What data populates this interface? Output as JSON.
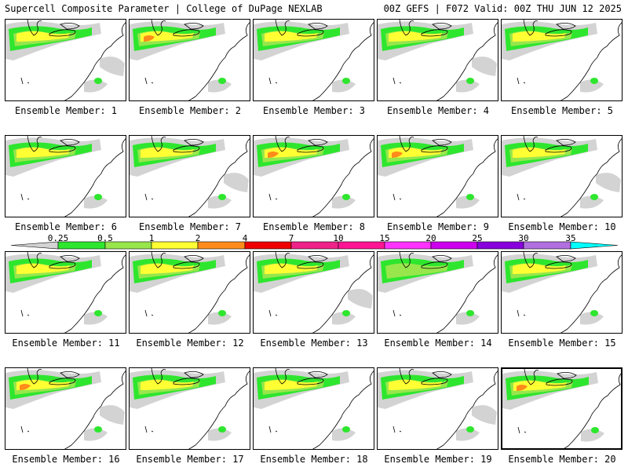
{
  "header": {
    "title_left": "Supercell Composite Parameter | College of DuPage NEXLAB",
    "title_right": "00Z GEFS | F072 Valid: 00Z THU JUN 12 2025"
  },
  "member_label_prefix": "Ensemble Member: ",
  "members": [
    {
      "label": "Ensemble Member: 1",
      "max_value": 4
    },
    {
      "label": "Ensemble Member: 2",
      "max_value": 7
    },
    {
      "label": "Ensemble Member: 3",
      "max_value": 4
    },
    {
      "label": "Ensemble Member: 4",
      "max_value": 4
    },
    {
      "label": "Ensemble Member: 5",
      "max_value": 4
    },
    {
      "label": "Ensemble Member: 6",
      "max_value": 4
    },
    {
      "label": "Ensemble Member: 7",
      "max_value": 4
    },
    {
      "label": "Ensemble Member: 8",
      "max_value": 7
    },
    {
      "label": "Ensemble Member: 9",
      "max_value": 7
    },
    {
      "label": "Ensemble Member: 10",
      "max_value": 4
    },
    {
      "label": "Ensemble Member: 11",
      "max_value": 4
    },
    {
      "label": "Ensemble Member: 12",
      "max_value": 4
    },
    {
      "label": "Ensemble Member: 13",
      "max_value": 4
    },
    {
      "label": "Ensemble Member: 14",
      "max_value": 2
    },
    {
      "label": "Ensemble Member: 15",
      "max_value": 4
    },
    {
      "label": "Ensemble Member: 16",
      "max_value": 7
    },
    {
      "label": "Ensemble Member: 17",
      "max_value": 4
    },
    {
      "label": "Ensemble Member: 18",
      "max_value": 4
    },
    {
      "label": "Ensemble Member: 19",
      "max_value": 4
    },
    {
      "label": "Ensemble Member: 20",
      "max_value": 7
    }
  ],
  "selected_member": 20,
  "colorbar": {
    "labels": [
      "0.25",
      "0.5",
      "1",
      "2",
      "4",
      "7",
      "10",
      "15",
      "20",
      "25",
      "30",
      "35"
    ],
    "colors": [
      "#d3d3d3",
      "#2ee62e",
      "#98e64c",
      "#ffff33",
      "#ff8c1a",
      "#ee0000",
      "#ee2288",
      "#ff1493",
      "#ff33ff",
      "#cc00ee",
      "#8800dd",
      "#b070e0",
      "#00ffff"
    ]
  },
  "colors": {
    "gray": "#d3d3d3",
    "green": "#2ee62e",
    "lightgreen": "#98e64c",
    "yellow": "#ffff33",
    "orange": "#ff8c1a"
  }
}
